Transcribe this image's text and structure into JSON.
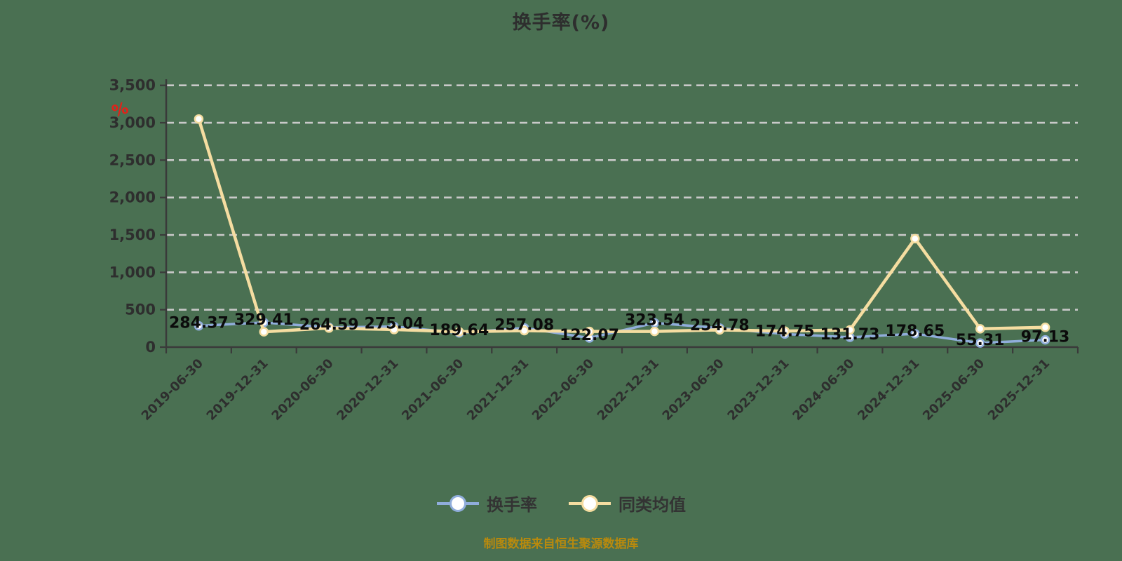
{
  "title": "换手率(%)",
  "y_axis_unit": "%",
  "caption": "制图数据来自恒生聚源数据库",
  "colors": {
    "background": "#4A7052",
    "turnover_line": "#90ADDB",
    "average_line": "#F5DDA1",
    "marker_fill": "#FFFFFF",
    "grid_line": "#C9C9C9",
    "axis_line": "#3A3A3A",
    "axis_text": "#2E2E2E",
    "point_label": "#0B0B0B",
    "title_text": "#2E2E2E",
    "unit_icon": "#E32119",
    "caption_text": "#B98A0D",
    "legend_text": "#333333"
  },
  "legend": {
    "items": [
      {
        "label": "换手率"
      },
      {
        "label": "同类均值"
      }
    ]
  },
  "chart_data": {
    "type": "line",
    "title": "换手率(%)",
    "categories": [
      "2019-06-30",
      "2019-12-31",
      "2020-06-30",
      "2020-12-31",
      "2021-06-30",
      "2021-12-31",
      "2022-06-30",
      "2022-12-31",
      "2023-06-30",
      "2023-12-31",
      "2024-06-30",
      "2024-12-31",
      "2025-06-30",
      "2025-12-31"
    ],
    "series": [
      {
        "name": "换手率",
        "color_key": "turnover_line",
        "labels_shown": true,
        "values": [
          284.37,
          329.41,
          264.59,
          275.04,
          189.64,
          257.08,
          122.07,
          323.54,
          254.78,
          174.75,
          131.73,
          178.65,
          55.31,
          97.13
        ]
      },
      {
        "name": "同类均值",
        "color_key": "average_line",
        "labels_shown": false,
        "values": [
          3050,
          205,
          255,
          235,
          205,
          220,
          210,
          210,
          230,
          215,
          230,
          1450,
          245,
          265
        ]
      }
    ],
    "ylim": [
      0,
      3500
    ],
    "ytick_interval": 500,
    "grid": "dashed-horizontal",
    "legend_position": "bottom",
    "xlabel": "",
    "ylabel": "%"
  }
}
